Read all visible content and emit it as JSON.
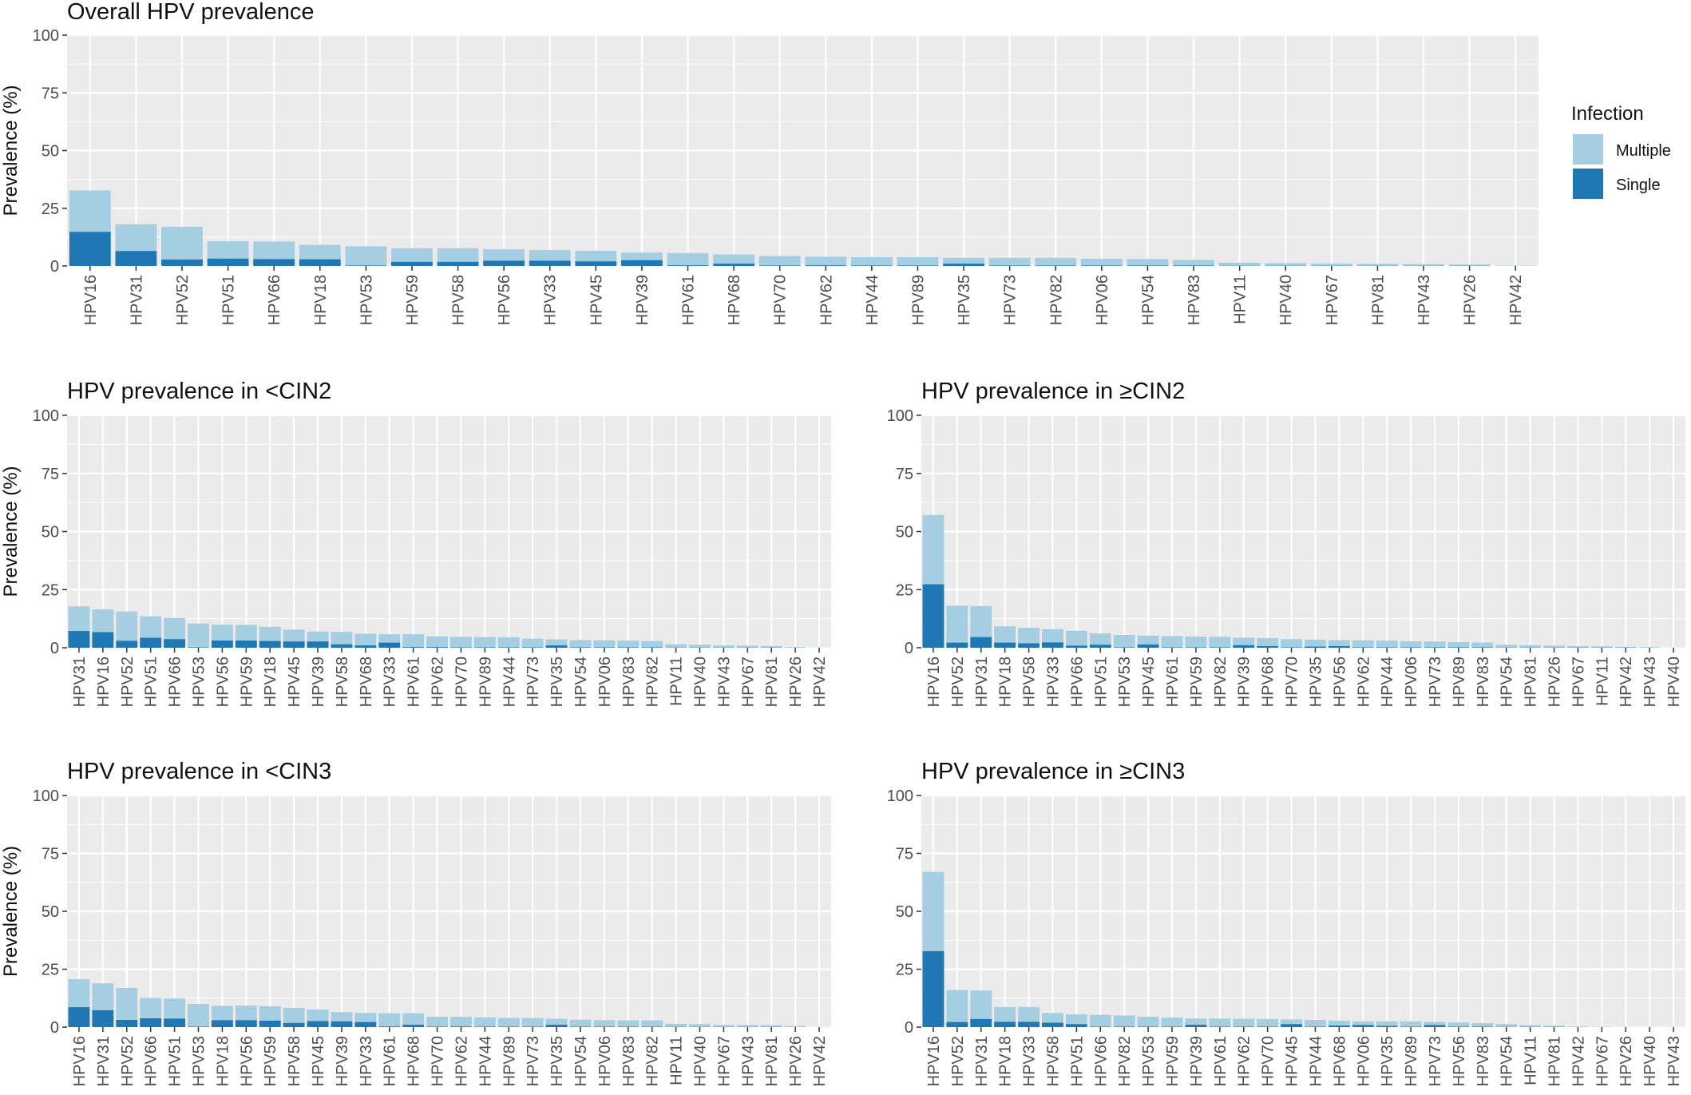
{
  "colors": {
    "multiple": "#a6cee3",
    "single": "#1f78b4",
    "panel_bg": "#ebebeb",
    "grid": "#ffffff"
  },
  "legend": {
    "title": "Infection",
    "items": [
      {
        "label": "Multiple",
        "color": "#a6cee3"
      },
      {
        "label": "Single",
        "color": "#1f78b4"
      }
    ]
  },
  "chart_data": [
    {
      "type": "bar",
      "stacked": true,
      "title": "Overall HPV prevalence",
      "ylabel": "Prevalence (%)",
      "ylim": [
        0,
        100
      ],
      "yticks": [
        0,
        25,
        50,
        75,
        100
      ],
      "categories": [
        "HPV16",
        "HPV31",
        "HPV52",
        "HPV51",
        "HPV66",
        "HPV18",
        "HPV53",
        "HPV59",
        "HPV58",
        "HPV56",
        "HPV33",
        "HPV45",
        "HPV39",
        "HPV61",
        "HPV68",
        "HPV70",
        "HPV62",
        "HPV44",
        "HPV89",
        "HPV35",
        "HPV73",
        "HPV82",
        "HPV06",
        "HPV54",
        "HPV83",
        "HPV11",
        "HPV40",
        "HPV67",
        "HPV81",
        "HPV43",
        "HPV26",
        "HPV42"
      ],
      "series": [
        {
          "name": "Single",
          "values": [
            14.8,
            6.5,
            2.8,
            3.2,
            3.0,
            2.9,
            0.2,
            1.8,
            1.8,
            2.3,
            2.3,
            2.0,
            2.5,
            0.3,
            1.0,
            0.2,
            0.3,
            0.2,
            0.2,
            1.0,
            0.2,
            0.2,
            0.2,
            0.2,
            0.2,
            0.1,
            0.1,
            0.1,
            0.1,
            0.1,
            0.1,
            0.0
          ]
        },
        {
          "name": "Multiple",
          "values": [
            17.9,
            11.6,
            14.2,
            7.5,
            7.6,
            6.2,
            8.3,
            5.9,
            5.9,
            4.9,
            4.6,
            4.6,
            3.3,
            5.3,
            4.0,
            4.1,
            3.7,
            3.6,
            3.6,
            2.5,
            3.3,
            3.3,
            2.9,
            2.8,
            2.4,
            1.3,
            1.1,
            0.9,
            0.8,
            0.7,
            0.5,
            0.2
          ]
        }
      ]
    },
    {
      "type": "bar",
      "stacked": true,
      "title": "HPV prevalence in <CIN2",
      "ylabel": "Prevalence (%)",
      "ylim": [
        0,
        100
      ],
      "yticks": [
        0,
        25,
        50,
        75,
        100
      ],
      "categories": [
        "HPV31",
        "HPV16",
        "HPV52",
        "HPV51",
        "HPV66",
        "HPV53",
        "HPV56",
        "HPV59",
        "HPV18",
        "HPV45",
        "HPV39",
        "HPV58",
        "HPV68",
        "HPV33",
        "HPV61",
        "HPV62",
        "HPV70",
        "HPV89",
        "HPV44",
        "HPV73",
        "HPV35",
        "HPV54",
        "HPV06",
        "HPV83",
        "HPV82",
        "HPV11",
        "HPV40",
        "HPV43",
        "HPV67",
        "HPV81",
        "HPV26",
        "HPV42"
      ],
      "series": [
        {
          "name": "Single",
          "values": [
            7.2,
            6.7,
            3.0,
            4.3,
            3.7,
            0.2,
            3.1,
            3.1,
            2.9,
            2.7,
            2.7,
            1.5,
            1.0,
            2.2,
            0.3,
            0.3,
            0.2,
            0.2,
            0.2,
            0.2,
            1.0,
            0.2,
            0.2,
            0.2,
            0.2,
            0.1,
            0.1,
            0.1,
            0.1,
            0.1,
            0.0,
            0.0
          ]
        },
        {
          "name": "Multiple",
          "values": [
            10.6,
            9.8,
            12.6,
            9.2,
            9.1,
            10.2,
            6.8,
            6.7,
            6.1,
            5.1,
            4.3,
            5.3,
            5.0,
            3.6,
            5.5,
            4.6,
            4.5,
            4.4,
            4.3,
            3.7,
            2.6,
            3.1,
            3.0,
            2.9,
            2.7,
            1.4,
            1.2,
            0.9,
            0.8,
            0.6,
            0.3,
            0.1
          ]
        }
      ]
    },
    {
      "type": "bar",
      "stacked": true,
      "title": "HPV prevalence in ≥CIN2",
      "ylabel": "",
      "ylim": [
        0,
        100
      ],
      "yticks": [
        0,
        25,
        50,
        75,
        100
      ],
      "categories": [
        "HPV16",
        "HPV52",
        "HPV31",
        "HPV18",
        "HPV58",
        "HPV33",
        "HPV66",
        "HPV51",
        "HPV53",
        "HPV45",
        "HPV61",
        "HPV59",
        "HPV82",
        "HPV39",
        "HPV68",
        "HPV70",
        "HPV35",
        "HPV56",
        "HPV62",
        "HPV44",
        "HPV06",
        "HPV73",
        "HPV89",
        "HPV83",
        "HPV54",
        "HPV81",
        "HPV26",
        "HPV67",
        "HPV11",
        "HPV42",
        "HPV43",
        "HPV40"
      ],
      "series": [
        {
          "name": "Single",
          "values": [
            27.3,
            2.2,
            4.6,
            2.2,
            1.9,
            2.3,
            0.9,
            1.3,
            0.2,
            1.4,
            0.2,
            0.2,
            0.2,
            1.1,
            0.7,
            0.2,
            0.5,
            0.7,
            0.2,
            0.2,
            0.2,
            0.2,
            0.2,
            0.2,
            0.1,
            0.1,
            0.1,
            0.1,
            0.1,
            0.1,
            0.0,
            0.0
          ]
        },
        {
          "name": "Multiple",
          "values": [
            29.8,
            15.9,
            13.3,
            7.0,
            6.7,
            5.7,
            6.4,
            4.9,
            5.3,
            3.8,
            4.8,
            4.6,
            4.5,
            3.2,
            3.4,
            3.5,
            3.0,
            2.6,
            3.0,
            2.9,
            2.6,
            2.5,
            2.2,
            2.0,
            1.2,
            1.0,
            0.8,
            0.6,
            0.5,
            0.3,
            0.3,
            0.1
          ]
        }
      ]
    },
    {
      "type": "bar",
      "stacked": true,
      "title": "HPV prevalence in <CIN3",
      "ylabel": "Prevalence (%)",
      "ylim": [
        0,
        100
      ],
      "yticks": [
        0,
        25,
        50,
        75,
        100
      ],
      "categories": [
        "HPV16",
        "HPV31",
        "HPV52",
        "HPV66",
        "HPV51",
        "HPV53",
        "HPV18",
        "HPV56",
        "HPV59",
        "HPV58",
        "HPV45",
        "HPV39",
        "HPV33",
        "HPV61",
        "HPV68",
        "HPV70",
        "HPV62",
        "HPV44",
        "HPV89",
        "HPV73",
        "HPV35",
        "HPV54",
        "HPV06",
        "HPV83",
        "HPV82",
        "HPV11",
        "HPV40",
        "HPV67",
        "HPV43",
        "HPV81",
        "HPV26",
        "HPV42"
      ],
      "series": [
        {
          "name": "Single",
          "values": [
            8.6,
            7.3,
            3.1,
            3.8,
            3.7,
            0.2,
            3.0,
            3.0,
            2.8,
            1.8,
            2.6,
            2.5,
            2.2,
            0.3,
            1.0,
            0.2,
            0.3,
            0.2,
            0.2,
            0.2,
            1.0,
            0.2,
            0.2,
            0.2,
            0.2,
            0.1,
            0.1,
            0.1,
            0.1,
            0.1,
            0.0,
            0.0
          ]
        },
        {
          "name": "Multiple",
          "values": [
            12.1,
            11.6,
            13.8,
            8.8,
            8.7,
            9.8,
            6.2,
            6.3,
            6.2,
            6.5,
            5.0,
            4.0,
            3.9,
            5.7,
            5.0,
            4.3,
            4.2,
            4.0,
            3.8,
            3.7,
            2.6,
            3.0,
            2.8,
            2.7,
            2.7,
            1.3,
            1.2,
            0.8,
            0.8,
            0.7,
            0.5,
            0.1
          ]
        }
      ]
    },
    {
      "type": "bar",
      "stacked": true,
      "title": "HPV prevalence in ≥CIN3",
      "ylabel": "",
      "ylim": [
        0,
        100
      ],
      "yticks": [
        0,
        25,
        50,
        75,
        100
      ],
      "categories": [
        "HPV16",
        "HPV52",
        "HPV31",
        "HPV18",
        "HPV33",
        "HPV58",
        "HPV51",
        "HPV66",
        "HPV82",
        "HPV53",
        "HPV59",
        "HPV39",
        "HPV61",
        "HPV62",
        "HPV70",
        "HPV45",
        "HPV44",
        "HPV68",
        "HPV06",
        "HPV35",
        "HPV89",
        "HPV73",
        "HPV56",
        "HPV83",
        "HPV54",
        "HPV11",
        "HPV81",
        "HPV42",
        "HPV67",
        "HPV26",
        "HPV40",
        "HPV43"
      ],
      "series": [
        {
          "name": "Single",
          "values": [
            32.8,
            2.2,
            3.5,
            2.3,
            2.3,
            1.9,
            1.3,
            0.2,
            0.2,
            0.2,
            0.2,
            1.0,
            0.2,
            0.2,
            0.2,
            1.3,
            0.2,
            0.7,
            0.9,
            0.5,
            0.2,
            0.9,
            0.2,
            0.2,
            0.1,
            0.1,
            0.1,
            0.0,
            0.0,
            0.0,
            0.0,
            0.0
          ]
        },
        {
          "name": "Multiple",
          "values": [
            34.2,
            13.8,
            12.3,
            6.4,
            6.4,
            4.2,
            4.2,
            5.1,
            4.8,
            4.3,
            3.9,
            2.7,
            3.5,
            3.4,
            3.3,
            2.0,
            2.9,
            2.1,
            1.6,
            2.0,
            2.3,
            1.4,
            1.8,
            1.5,
            1.2,
            0.7,
            0.5,
            0.3,
            0.2,
            0.1,
            0.1,
            0.1
          ]
        }
      ]
    }
  ]
}
